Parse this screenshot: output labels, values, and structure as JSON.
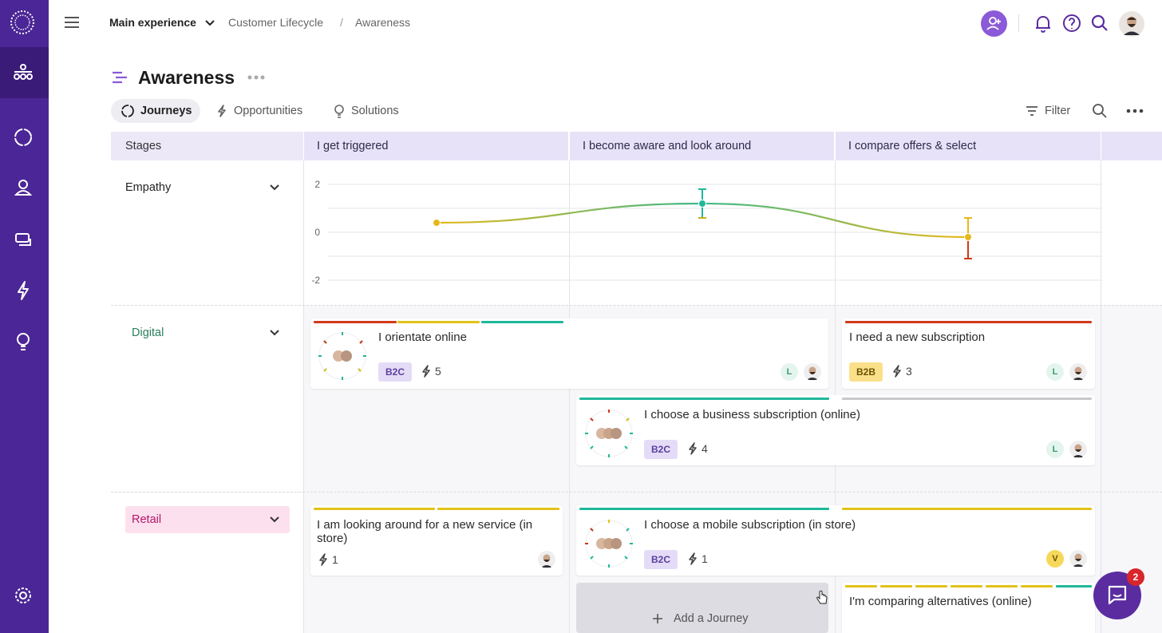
{
  "breadcrumb": {
    "workspace": "Main experience",
    "items": [
      "Customer Lifecycle",
      "/",
      "Awareness"
    ]
  },
  "page": {
    "title": "Awareness",
    "tabs": [
      {
        "label": "Journeys",
        "active": true
      },
      {
        "label": "Opportunities",
        "active": false
      },
      {
        "label": "Solutions",
        "active": false
      }
    ],
    "filter_label": "Filter"
  },
  "grid": {
    "stages_label": "Stages",
    "stages": [
      "I get triggered",
      "I become aware and look around",
      "I compare offers & select"
    ],
    "empathy": {
      "label": "Empathy",
      "y_ticks": [
        "2",
        "0",
        "-2"
      ],
      "ylim": [
        -2,
        2
      ]
    },
    "lanes": [
      {
        "label": "Digital",
        "color": "#e3f5ee",
        "text_color": "#2a7f5e"
      },
      {
        "label": "Retail",
        "color": "#fde0ee",
        "text_color": "#b0186a"
      }
    ]
  },
  "chart_data": {
    "type": "line",
    "x": [
      "I get triggered",
      "I become aware and look around",
      "I compare offers & select"
    ],
    "values": [
      0.4,
      1.2,
      -0.2
    ],
    "error_low": [
      0.4,
      0.6,
      -1.1
    ],
    "error_high": [
      0.4,
      1.8,
      0.6
    ],
    "ylim": [
      -2,
      2
    ],
    "yticks": [
      2,
      0,
      -2
    ]
  },
  "cards": {
    "orientate": {
      "title": "I orientate online",
      "tag": "B2C",
      "opportunities": "5",
      "assignee_initial": "L"
    },
    "need_sub": {
      "title": "I need a new subscription",
      "tag": "B2B",
      "opportunities": "3",
      "assignee_initial": "L"
    },
    "business_sub": {
      "title": "I choose a business subscription (online)",
      "tag": "B2C",
      "opportunities": "4",
      "assignee_initial": "L"
    },
    "looking_around": {
      "title": "I am looking around for a new service (in store)",
      "opportunities": "1"
    },
    "mobile_sub": {
      "title": "I choose a mobile subscription (in store)",
      "tag": "B2C",
      "opportunities": "1",
      "assignee_initial": "V"
    },
    "comparing": {
      "title": "I'm comparing alternatives (online)"
    }
  },
  "add_journey_label": "Add a Journey",
  "chat_badge": "2",
  "colors": {
    "sidebar": "#4b2696",
    "accent": "#7a4fd0",
    "red": "#d03a1a",
    "yellow": "#e2c21a",
    "teal": "#1fb89a",
    "grey": "#c8c8cc"
  }
}
